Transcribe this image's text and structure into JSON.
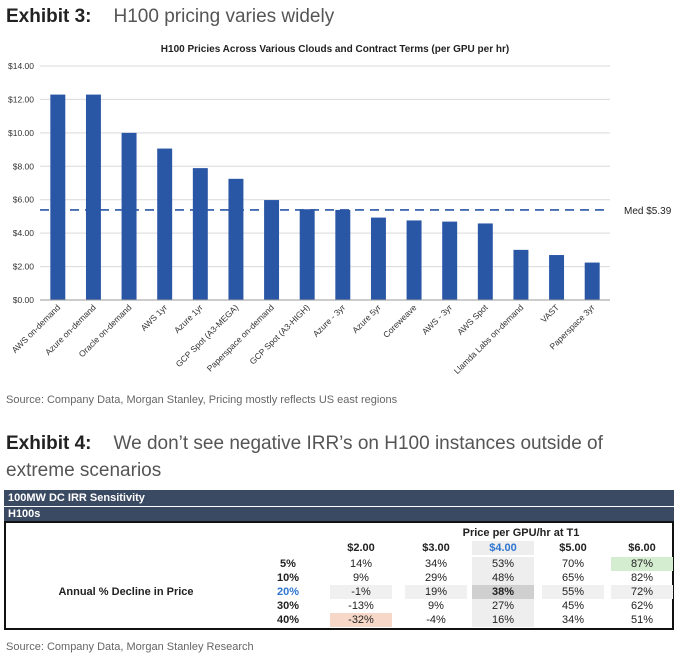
{
  "exhibit3": {
    "label": "Exhibit 3:",
    "title": "H100 pricing varies widely"
  },
  "exhibit4": {
    "label": "Exhibit 4:",
    "title": "We don’t see negative IRR’s on H100 instances outside of extreme scenarios"
  },
  "source3": "Source: Company Data, Morgan Stanley, Pricing mostly reflects US east regions",
  "source4": "Source: Company Data, Morgan Stanley Research",
  "chart_data": {
    "type": "bar",
    "title": "H100 Pricies Across Various Clouds and Contract Terms (per GPU per hr)",
    "categories": [
      "AWS on-demand",
      "Azure on-demand",
      "Oracle on-demand",
      "AWS 1yr",
      "Azure 1yr",
      "GCP Spot (A3-MEGA)",
      "Paperspace on-demand",
      "GCP Spot (A3-HIGH)",
      "Azure - 3yr",
      "Azure 5yr",
      "Coreweave",
      "AWS - 3yr",
      "AWS Spot",
      "Llamda Labs on-demand",
      "VAST",
      "Paperspace 3yr"
    ],
    "values": [
      12.29,
      12.29,
      10.0,
      9.06,
      7.89,
      7.25,
      5.98,
      5.43,
      5.39,
      4.93,
      4.76,
      4.69,
      4.58,
      3.0,
      2.69,
      2.24
    ],
    "ylim": [
      0,
      14
    ],
    "yticks": [
      "$0.00",
      "$2.00",
      "$4.00",
      "$6.00",
      "$8.00",
      "$10.00",
      "$12.00",
      "$14.00"
    ],
    "median": {
      "value": 5.39,
      "label": "Med $5.39"
    },
    "grid": true,
    "bar_color": "#2a56a6"
  },
  "table": {
    "header1": "100MW DC IRR Sensitivity",
    "header2": "H100s",
    "col_header": "Price per GPU/hr at T1",
    "row_header": "Annual % Decline in Price",
    "columns": [
      "$2.00",
      "$3.00",
      "$4.00",
      "$5.00",
      "$6.00"
    ],
    "rows": [
      {
        "label": "5%",
        "values": [
          "14%",
          "34%",
          "53%",
          "70%",
          "87%"
        ]
      },
      {
        "label": "10%",
        "values": [
          "9%",
          "29%",
          "48%",
          "65%",
          "82%"
        ]
      },
      {
        "label": "20%",
        "values": [
          "-1%",
          "19%",
          "38%",
          "55%",
          "72%"
        ]
      },
      {
        "label": "30%",
        "values": [
          "-13%",
          "9%",
          "27%",
          "45%",
          "62%"
        ]
      },
      {
        "label": "40%",
        "values": [
          "-32%",
          "-4%",
          "16%",
          "34%",
          "51%"
        ]
      }
    ]
  }
}
